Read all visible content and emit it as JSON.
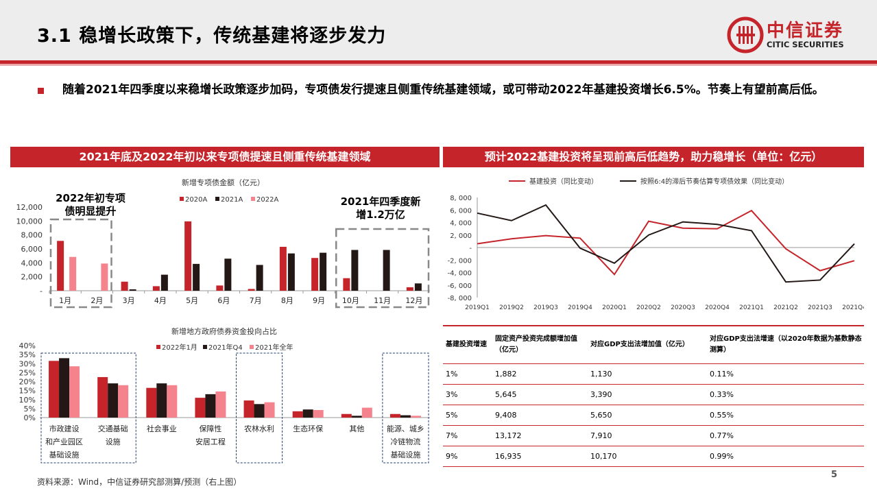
{
  "header": {
    "title": "3.1 稳增长政策下，传统基建将逐步发力",
    "logo_name": "中信证券",
    "logo_en": "CITIC SECURITIES"
  },
  "bullet_text": "随着2021年四季度以来稳增长政策逐步加码，专项债发行提速且侧重传统基建领域，或可带动2022年基建投资增长6.5%。节奏上有望前高后低。",
  "panel_left_title": "2021年底及2022年初以来专项债提速且侧重传统基建领域",
  "panel_right_title": "预计2022基建投资将呈现前高后低趋势，助力稳增长（单位：亿元）",
  "annotations": {
    "early_2022": "2022年初专项债明显提升",
    "q4_2021": "2021年四季度新增1.2万亿"
  },
  "colors": {
    "red": "#c4242a",
    "dark": "#231815",
    "pink": "#f4838e"
  },
  "chart_data": [
    {
      "type": "bar",
      "title": "新增专项债金额（亿元）",
      "categories": [
        "1月",
        "2月",
        "3月",
        "4月",
        "5月",
        "6月",
        "7月",
        "8月",
        "9月",
        "10月",
        "11月",
        "12月"
      ],
      "ylim": [
        0,
        12000
      ],
      "yticks": [
        "12,000",
        "10,000",
        "8,000",
        "6,000",
        "4,000",
        "2,000",
        "-"
      ],
      "legend": "top",
      "series": [
        {
          "name": "2020A",
          "color": "#c4242a",
          "values": [
            7150,
            0,
            1300,
            650,
            9950,
            750,
            250,
            6300,
            4700,
            1800,
            0,
            500
          ]
        },
        {
          "name": "2021A",
          "color": "#231815",
          "values": [
            0,
            0,
            200,
            2300,
            3850,
            4600,
            3700,
            5350,
            5450,
            5850,
            5850,
            1050
          ]
        },
        {
          "name": "2022A",
          "color": "#f4838e",
          "values": [
            4850,
            3900,
            null,
            null,
            null,
            null,
            null,
            null,
            null,
            null,
            null,
            null
          ]
        }
      ]
    },
    {
      "type": "bar",
      "title": "新增地方政府债券资金投向占比",
      "categories": [
        "市政建设和产业园区基础设施",
        "交通基础设施",
        "社会事业",
        "保障性安居工程",
        "农林水利",
        "生态环保",
        "其他",
        "能源、城乡冷链物流基础设施"
      ],
      "category_lines": [
        [
          "市政建设",
          "和产业园区",
          "基础设施"
        ],
        [
          "交通基础",
          "设施"
        ],
        [
          "社会事业"
        ],
        [
          "保障性",
          "安居工程"
        ],
        [
          "农林水利"
        ],
        [
          "生态环保"
        ],
        [
          "其他"
        ],
        [
          "能源、城乡",
          "冷链物流",
          "基础设施"
        ]
      ],
      "ylim": [
        0,
        40
      ],
      "yticks": [
        "40%",
        "35%",
        "30%",
        "25%",
        "20%",
        "15%",
        "10%",
        "5%",
        "0%"
      ],
      "legend": "top",
      "series": [
        {
          "name": "2022年1月",
          "color": "#c4242a",
          "values": [
            31.5,
            22.5,
            16.5,
            11,
            9.5,
            3.5,
            2,
            2
          ]
        },
        {
          "name": "2021年Q4",
          "color": "#231815",
          "values": [
            33,
            19,
            19,
            13,
            7.5,
            4.5,
            1,
            1.3
          ]
        },
        {
          "name": "2021年全年",
          "color": "#f4838e",
          "values": [
            28.5,
            18,
            18,
            14.5,
            8.5,
            4.2,
            5.5,
            1
          ]
        }
      ]
    },
    {
      "type": "line",
      "categories": [
        "2019Q1",
        "2019Q2",
        "2019Q3",
        "2019Q4",
        "2020Q1",
        "2020Q2",
        "2020Q3",
        "2020Q4",
        "2021Q1",
        "2021Q2",
        "2021Q3",
        "2021Q4"
      ],
      "ylim": [
        -8000,
        8000
      ],
      "yticks": [
        "8, 000",
        "6, 000",
        "4, 000",
        "2, 000",
        "-",
        "-2, 000",
        "-4, 000",
        "-6, 000",
        "-8, 000"
      ],
      "legend": "top",
      "series": [
        {
          "name": "基建投资（同比变动）",
          "color": "#c4242a",
          "values": [
            600,
            1400,
            1900,
            1500,
            -4300,
            4200,
            3100,
            3000,
            5900,
            -200,
            -3700,
            -2100
          ]
        },
        {
          "name": "按照6:4的滞后节奏估算专项债效果（同比变动）",
          "color": "#231815",
          "values": [
            5500,
            4300,
            6800,
            -100,
            -2500,
            2000,
            4100,
            3700,
            2700,
            -5500,
            -5200,
            600
          ]
        }
      ]
    },
    {
      "type": "table",
      "headers": [
        "基建投资增速",
        "固定资产投资完成额增加值（亿元）",
        "对应GDP支出法增加值（亿元）",
        "对应GDP支出法增速（以2020年数据为基数静态测算）"
      ],
      "rows": [
        [
          "1%",
          "1,882",
          "1,130",
          "0.11%"
        ],
        [
          "3%",
          "5,645",
          "3,390",
          "0.33%"
        ],
        [
          "5%",
          "9,408",
          "5,650",
          "0.55%"
        ],
        [
          "7%",
          "13,172",
          "7,910",
          "0.77%"
        ],
        [
          "9%",
          "16,935",
          "10,170",
          "0.99%"
        ]
      ]
    }
  ],
  "source": "资料来源：Wind，中信证券研究部测算/预测（右上图）",
  "page_number": "5"
}
